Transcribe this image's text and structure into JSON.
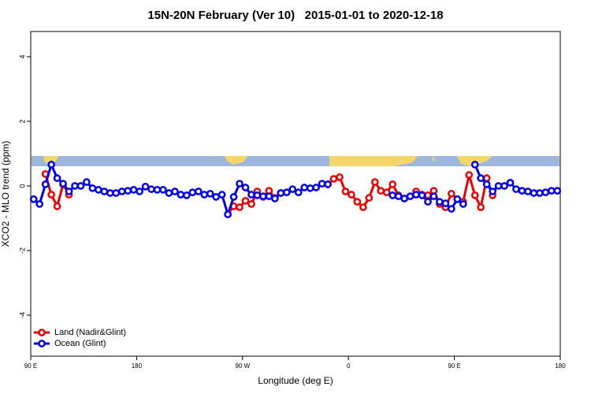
{
  "chart_data": {
    "type": "line",
    "title": "15N-20N February (Ver 10)   2015-01-01 to 2020-12-18",
    "x_label": "Longitude (deg E)",
    "y_label": "XCO2 - MLO trend (ppm)",
    "xlim": [
      90,
      540
    ],
    "ylim": [
      -5.27,
      4.78
    ],
    "xticks": [
      {
        "value": 90,
        "label": "90 E"
      },
      180,
      {
        "value": 270,
        "label": "90 W"
      },
      {
        "value": 360,
        "label": "0"
      },
      {
        "value": 450,
        "label": "90 E"
      },
      {
        "value": 540,
        "label": "180"
      }
    ],
    "yticks": [
      -4,
      -2,
      0,
      2,
      4
    ],
    "legend": "bottom-left",
    "x": [
      92.5,
      97.5,
      102.5,
      107.5,
      112.5,
      117.5,
      122.5,
      127.5,
      132.5,
      137.5,
      142.5,
      147.5,
      152.5,
      157.5,
      162.5,
      167.5,
      172.5,
      177.5,
      182.5,
      187.5,
      192.5,
      197.5,
      202.5,
      207.5,
      212.5,
      217.5,
      222.5,
      227.5,
      232.5,
      237.5,
      242.5,
      247.5,
      252.5,
      257.5,
      262.5,
      267.5,
      272.5,
      277.5,
      282.5,
      287.5,
      292.5,
      297.5,
      302.5,
      307.5,
      312.5,
      317.5,
      322.5,
      327.5,
      332.5,
      337.5,
      342.5,
      347.5,
      352.5,
      357.5,
      362.5,
      367.5,
      372.5,
      377.5,
      382.5,
      387.5,
      392.5,
      397.5,
      402.5,
      407.5,
      412.5,
      417.5,
      422.5,
      427.5,
      432.5,
      437.5,
      442.5,
      447.5,
      452.5,
      457.5,
      462.5,
      467.5,
      472.5,
      477.5,
      482.5,
      487.5,
      492.5,
      497.5,
      502.5,
      507.5,
      512.5,
      517.5,
      522.5,
      527.5,
      532.5,
      537.5
    ],
    "series": [
      {
        "name": "Land (Nadir&Glint)",
        "color": "#ee0000",
        "values": [
          null,
          null,
          0.37,
          -0.27,
          -0.63,
          0.05,
          -0.27,
          null,
          null,
          null,
          null,
          null,
          null,
          null,
          null,
          null,
          null,
          null,
          null,
          null,
          null,
          null,
          null,
          null,
          null,
          null,
          null,
          null,
          null,
          null,
          null,
          null,
          null,
          -0.88,
          -0.63,
          -0.66,
          -0.46,
          -0.56,
          -0.17,
          -0.34,
          -0.15,
          -0.37,
          -0.22,
          null,
          null,
          null,
          null,
          null,
          null,
          null,
          0.05,
          0.22,
          0.27,
          -0.17,
          -0.27,
          -0.49,
          -0.66,
          -0.37,
          0.12,
          -0.15,
          -0.2,
          0.05,
          -0.29,
          -0.39,
          -0.32,
          -0.17,
          -0.27,
          -0.29,
          -0.15,
          -0.56,
          -0.66,
          -0.24,
          -0.41,
          -0.49,
          0.34,
          -0.29,
          -0.66,
          0.24,
          -0.29,
          null,
          null,
          null,
          null,
          null,
          null,
          null,
          null,
          null,
          null,
          null
        ]
      },
      {
        "name": "Ocean (Glint)",
        "color": "#0000ee",
        "values": [
          -0.41,
          -0.56,
          0.05,
          0.66,
          0.24,
          0.07,
          -0.17,
          0,
          0,
          0.12,
          -0.07,
          -0.12,
          -0.17,
          -0.22,
          -0.22,
          -0.17,
          -0.15,
          -0.12,
          -0.17,
          -0.02,
          -0.1,
          -0.12,
          -0.12,
          -0.22,
          -0.17,
          -0.27,
          -0.29,
          -0.2,
          -0.17,
          -0.27,
          -0.24,
          -0.34,
          -0.27,
          -0.88,
          -0.34,
          0.07,
          -0.05,
          -0.27,
          -0.29,
          -0.32,
          -0.32,
          -0.39,
          -0.22,
          -0.2,
          -0.1,
          -0.2,
          -0.05,
          -0.07,
          -0.05,
          0.07,
          0.05,
          null,
          null,
          null,
          null,
          null,
          null,
          null,
          null,
          null,
          null,
          -0.29,
          -0.32,
          -0.39,
          -0.32,
          -0.27,
          -0.29,
          -0.49,
          -0.32,
          -0.49,
          -0.54,
          -0.71,
          -0.41,
          -0.56,
          null,
          0.66,
          0.24,
          0.05,
          -0.17,
          0,
          0,
          0.1,
          -0.1,
          -0.15,
          -0.17,
          -0.22,
          -0.22,
          -0.2,
          -0.15,
          -0.15
        ]
      }
    ]
  }
}
